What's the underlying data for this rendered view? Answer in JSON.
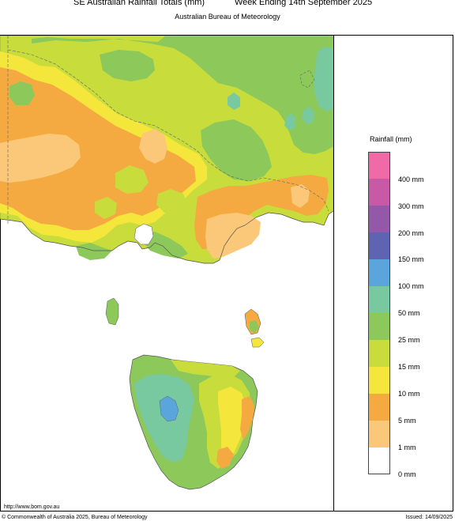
{
  "header": {
    "title_left": "SE Australian Rainfall Totals (mm)",
    "title_right": "Week Ending 14th September 2025",
    "subtitle": "Australian Bureau of Meteorology"
  },
  "legend": {
    "title": "Rainfall (mm)",
    "bands": [
      {
        "label": "400 mm",
        "color": "#f06aa8"
      },
      {
        "label": "300 mm",
        "color": "#c85aa5"
      },
      {
        "label": "200 mm",
        "color": "#9458a8"
      },
      {
        "label": "150 mm",
        "color": "#5e64b2"
      },
      {
        "label": "100 mm",
        "color": "#5aa6dc"
      },
      {
        "label": "50 mm",
        "color": "#78c8a0"
      },
      {
        "label": "25 mm",
        "color": "#8cc85a"
      },
      {
        "label": "15 mm",
        "color": "#c8dc3c"
      },
      {
        "label": "10 mm",
        "color": "#f5e63c"
      },
      {
        "label": "5 mm",
        "color": "#f5aa41"
      },
      {
        "label": "1 mm",
        "color": "#fac878"
      },
      {
        "label": "0 mm",
        "color": "#ffffff"
      }
    ]
  },
  "footer": {
    "url": "http://www.bom.gov.au",
    "copyright": "© Commonwealth of Australia 2025, Bureau of Meteorology",
    "issued": "Issued: 14/09/2025"
  }
}
